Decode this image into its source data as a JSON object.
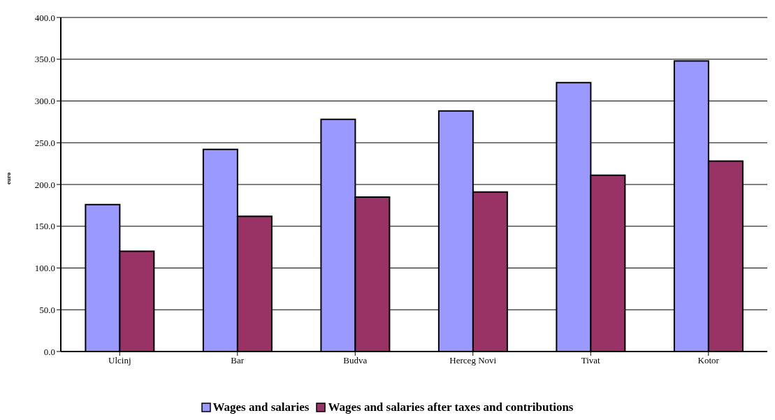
{
  "chart_data": {
    "type": "bar",
    "ylabel": "euro",
    "categories": [
      "Ulcinj",
      "Bar",
      "Budva",
      "Herceg Novi",
      "Tivat",
      "Kotor"
    ],
    "series": [
      {
        "name": "Wages and salaries",
        "color": "#9999ff",
        "values": [
          176,
          242,
          278,
          288,
          322,
          348
        ]
      },
      {
        "name": "Wages and salaries after taxes and contributions",
        "color": "#993366",
        "values": [
          120,
          162,
          185,
          191,
          211,
          228
        ]
      }
    ],
    "ylim": [
      0,
      400
    ],
    "yticks": [
      {
        "value": 0,
        "label": "0.0"
      },
      {
        "value": 50,
        "label": "50.0"
      },
      {
        "value": 100,
        "label": "100.0"
      },
      {
        "value": 150,
        "label": "150.0"
      },
      {
        "value": 200,
        "label": "200.0"
      },
      {
        "value": 250,
        "label": "250.0"
      },
      {
        "value": 300,
        "label": "300.0"
      },
      {
        "value": 350,
        "label": "350.0"
      },
      {
        "value": 400,
        "label": "400.0"
      }
    ],
    "grid": "y",
    "legend": "bottom"
  }
}
